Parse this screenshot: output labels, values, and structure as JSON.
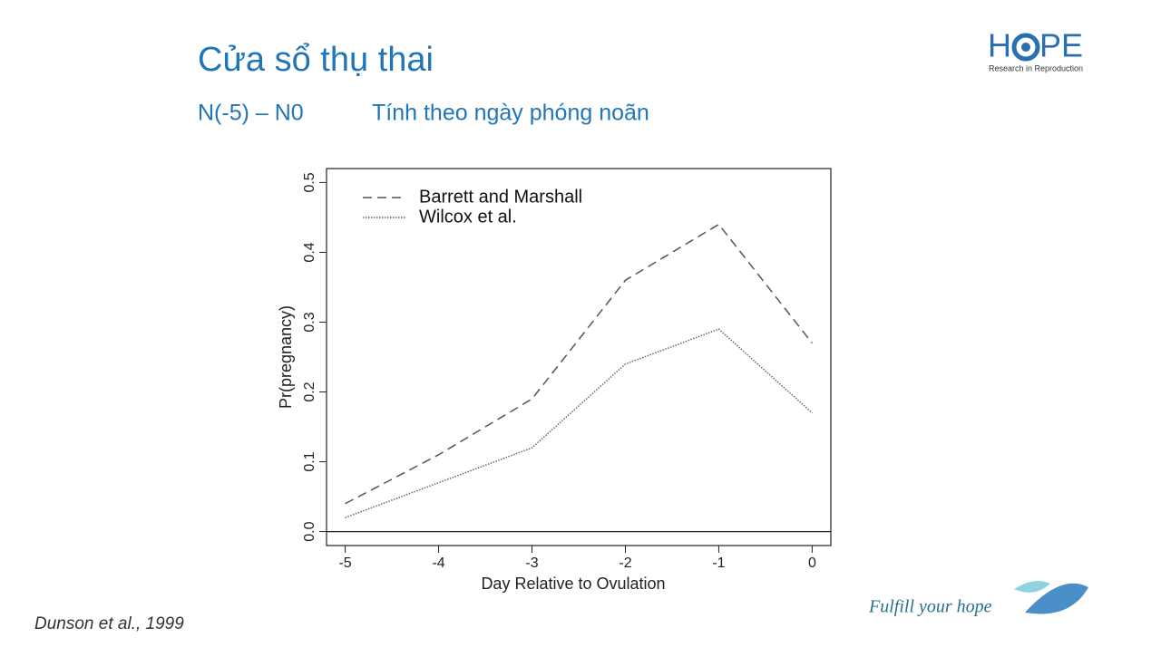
{
  "slide": {
    "title": "Cửa sổ thụ thai",
    "subtitle_left": "N(-5) – N0",
    "subtitle_right": "Tính theo ngày phóng noãn",
    "citation": "Dunson et al., 1999",
    "logo_left": "H",
    "logo_right": "PE",
    "logo_tagline": "Research in Reproduction",
    "slogan": "Fulfill your hope"
  },
  "chart_data": {
    "type": "line",
    "x_label": "Day Relative to Ovulation",
    "y_label": "Pr(pregnancy)",
    "x": [
      -5,
      -4,
      -3,
      -2,
      -1,
      0
    ],
    "series": [
      {
        "name": "Barrett and Marshall",
        "color": "#555555",
        "dash": "dashed",
        "values": [
          0.04,
          0.11,
          0.19,
          0.36,
          0.44,
          0.27
        ]
      },
      {
        "name": "Wilcox et al.",
        "color": "#666666",
        "dash": "dotted",
        "values": [
          0.02,
          0.07,
          0.12,
          0.24,
          0.29,
          0.17
        ]
      }
    ],
    "xlim": [
      -5.2,
      0.2
    ],
    "xticks": [
      -5,
      -4,
      -3,
      -2,
      -1,
      0
    ],
    "ylim": [
      -0.02,
      0.52
    ],
    "yticks": [
      {
        "value": 0,
        "label": "0.0"
      },
      0.1,
      0.2,
      0.3,
      0.4,
      0.5
    ],
    "hline": 0,
    "legend": "top-left",
    "grid": false
  }
}
